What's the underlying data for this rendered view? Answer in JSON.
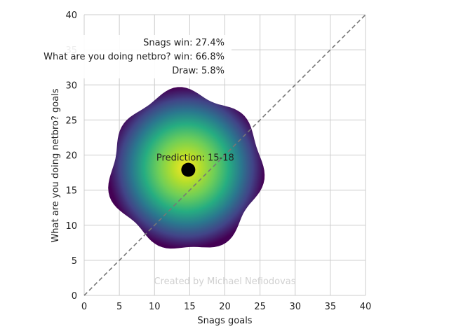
{
  "chart_data": {
    "type": "scatter",
    "xlabel": "Snags goals",
    "ylabel": "What are you doing netbro? goals",
    "xlim": [
      0,
      40
    ],
    "ylim": [
      0,
      40
    ],
    "xticks": [
      "0",
      "5",
      "10",
      "15",
      "20",
      "25",
      "30",
      "35",
      "40"
    ],
    "yticks": [
      "0",
      "5",
      "10",
      "15",
      "20",
      "25",
      "30",
      "35",
      "40"
    ],
    "grid": true,
    "diagonal_line": {
      "from": [
        0,
        0
      ],
      "to": [
        40,
        40
      ],
      "style": "dashed",
      "color": "#777777"
    },
    "density": {
      "colormap": "viridis",
      "center": [
        14.5,
        17.8
      ],
      "extent_radius_goals": 10.5,
      "colors": [
        "#fde725",
        "#7ad151",
        "#22a884",
        "#2a788e",
        "#414487",
        "#440154"
      ]
    },
    "prediction_point": {
      "x": 14.8,
      "y": 17.9,
      "color": "#000000"
    },
    "annotations": {
      "home_win": "Snags win: 27.4%",
      "away_win": "What are you doing netbro? win: 66.8%",
      "draw": "Draw: 5.8%",
      "prediction": "Prediction: 15-18"
    },
    "watermark": "Created by Michael Nefiodovas"
  }
}
